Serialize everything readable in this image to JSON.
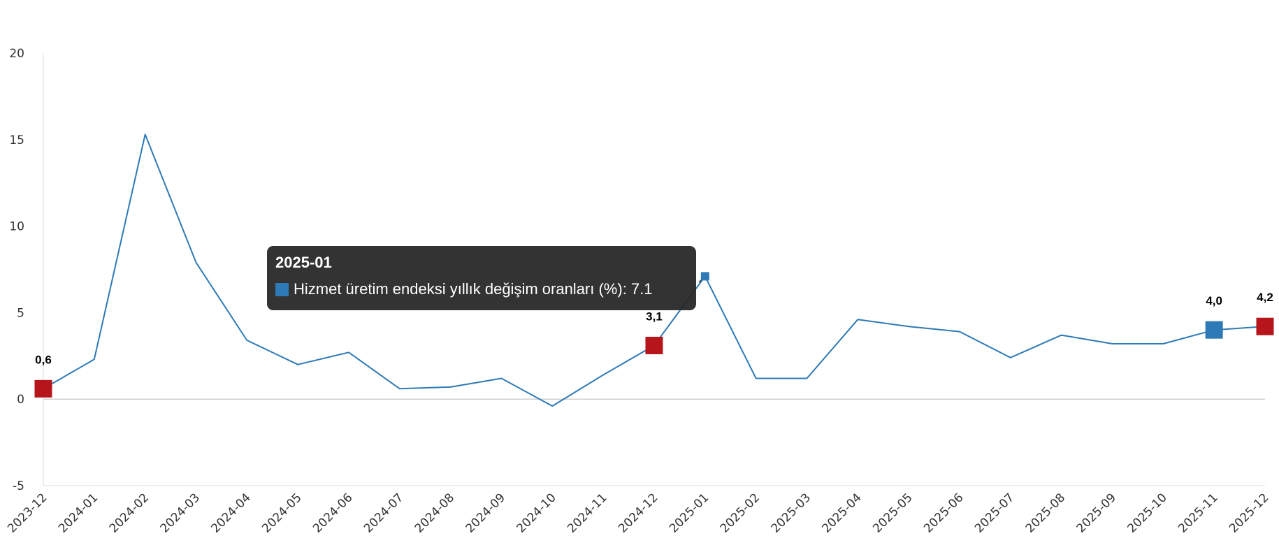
{
  "chart_data": {
    "type": "line",
    "title": "",
    "xlabel": "",
    "ylabel": "",
    "ylim": [
      -5,
      20
    ],
    "yticks": [
      -5,
      0,
      5,
      10,
      15,
      20
    ],
    "grid": false,
    "legend": "none",
    "categories": [
      "2023-12",
      "2024-01",
      "2024-02",
      "2024-03",
      "2024-04",
      "2024-05",
      "2024-06",
      "2024-07",
      "2024-08",
      "2024-09",
      "2024-10",
      "2024-11",
      "2024-12",
      "2025-01",
      "2025-02",
      "2025-03",
      "2025-04",
      "2025-05",
      "2025-06",
      "2025-07",
      "2025-08",
      "2025-09",
      "2025-10",
      "2025-11",
      "2025-12"
    ],
    "series": [
      {
        "name": "Hizmet üretim endeksi yıllık değişim oranları (%)",
        "color": "#2e7ab6",
        "values": [
          0.6,
          2.3,
          15.3,
          7.9,
          3.4,
          2.0,
          2.7,
          0.6,
          0.7,
          1.2,
          -0.4,
          1.4,
          3.1,
          7.1,
          1.2,
          1.2,
          4.6,
          4.2,
          3.9,
          2.4,
          3.7,
          3.2,
          3.2,
          4.0,
          4.2
        ]
      }
    ],
    "highlights": [
      {
        "category": "2023-12",
        "label": "0,6",
        "color": "#b5151b"
      },
      {
        "category": "2024-12",
        "label": "3,1",
        "color": "#b5151b"
      },
      {
        "category": "2025-11",
        "label": "4,0",
        "color": "#2e7ab6"
      },
      {
        "category": "2025-12",
        "label": "4,2",
        "color": "#b5151b"
      }
    ],
    "tooltip": {
      "category": "2025-01",
      "title": "2025-01",
      "text": "Hizmet üretim endeksi yıllık değişim oranları (%): 7.1",
      "swatch_color": "#2e7ab6"
    }
  }
}
